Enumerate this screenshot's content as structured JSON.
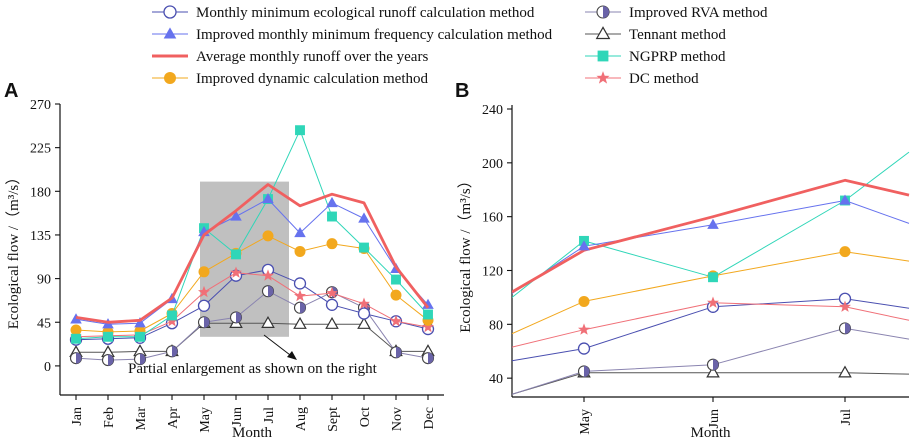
{
  "chart_data": {
    "type": "line",
    "legend": [
      {
        "key": "mmer",
        "label": "Monthly minimum ecological runoff calculation method"
      },
      {
        "key": "immf",
        "label": "Improved monthly minimum frequency calculation method"
      },
      {
        "key": "avg",
        "label": "Average monthly runoff over the years"
      },
      {
        "key": "idyn",
        "label": "Improved dynamic calculation method"
      },
      {
        "key": "rva",
        "label": "Improved RVA method"
      },
      {
        "key": "tennant",
        "label": "Tennant method"
      },
      {
        "key": "ngprp",
        "label": "NGPRP method"
      },
      {
        "key": "dc",
        "label": "DC method"
      }
    ],
    "styles": {
      "mmer": {
        "color": "#4a4fb0",
        "marker": "circle-open"
      },
      "immf": {
        "color": "#6672ee",
        "marker": "triangle-filled"
      },
      "avg": {
        "color": "#f06060",
        "marker": "none"
      },
      "idyn": {
        "color": "#f2a81e",
        "marker": "circle-filled"
      },
      "rva": {
        "color": "#8a84b0",
        "marker": "half-circle"
      },
      "tennant": {
        "color": "#555555",
        "marker": "triangle-open"
      },
      "ngprp": {
        "color": "#2fd6b8",
        "marker": "square-filled"
      },
      "dc": {
        "color": "#f07078",
        "marker": "star"
      }
    },
    "panel_a": {
      "label": "A",
      "categories": [
        "Jan",
        "Feb",
        "Mar",
        "Apr",
        "May",
        "Jun",
        "Jul",
        "Aug",
        "Sept",
        "Oct",
        "Nov",
        "Dec"
      ],
      "ylim": [
        -30,
        270
      ],
      "yticks": [
        0,
        45,
        90,
        135,
        180,
        225,
        270
      ],
      "xlabel": "Month",
      "ylabel": "Ecological flow /（m³/s）",
      "annotation": "Partial enlargement as shown on the right",
      "series": {
        "tennant": [
          14,
          14,
          15,
          15,
          44,
          44,
          44,
          43,
          43,
          43,
          15,
          15
        ],
        "rva": [
          8,
          6,
          7,
          15,
          45,
          50,
          77,
          60,
          76,
          60,
          14,
          8
        ],
        "mmer": [
          27,
          28,
          29,
          44,
          62,
          93,
          99,
          85,
          63,
          54,
          46,
          38
        ],
        "dc": [
          30,
          31,
          32,
          46,
          76,
          96,
          93,
          72,
          75,
          64,
          46,
          40
        ],
        "idyn": [
          37,
          35,
          36,
          54,
          97,
          116,
          134,
          118,
          126,
          121,
          73,
          47
        ],
        "ngprp": [
          28,
          30,
          30,
          52,
          142,
          115,
          172,
          243,
          154,
          122,
          89,
          53
        ],
        "immf": [
          48,
          43,
          44,
          69,
          138,
          154,
          172,
          137,
          168,
          152,
          100,
          63
        ],
        "avg": [
          50,
          45,
          47,
          70,
          135,
          160,
          187,
          165,
          177,
          168,
          102,
          60
        ]
      }
    },
    "panel_b": {
      "label": "B",
      "categories": [
        "May",
        "Jun",
        "Jul"
      ],
      "ylim": [
        26,
        240
      ],
      "yticks": [
        40,
        80,
        120,
        160,
        200,
        240
      ],
      "xlabel": "Month",
      "ylabel": "Ecological flow /（m³/s）",
      "edge_values": {
        "left": {
          "tennant": 28,
          "rva": 28,
          "mmer": 53,
          "dc": 63,
          "idyn": 73,
          "ngprp": 100,
          "immf": 103,
          "avg": 104
        },
        "right": {
          "tennant": 43,
          "rva": 69,
          "mmer": 92,
          "dc": 83,
          "idyn": 127,
          "ngprp": 208,
          "immf": 155,
          "avg": 176
        }
      }
    }
  }
}
